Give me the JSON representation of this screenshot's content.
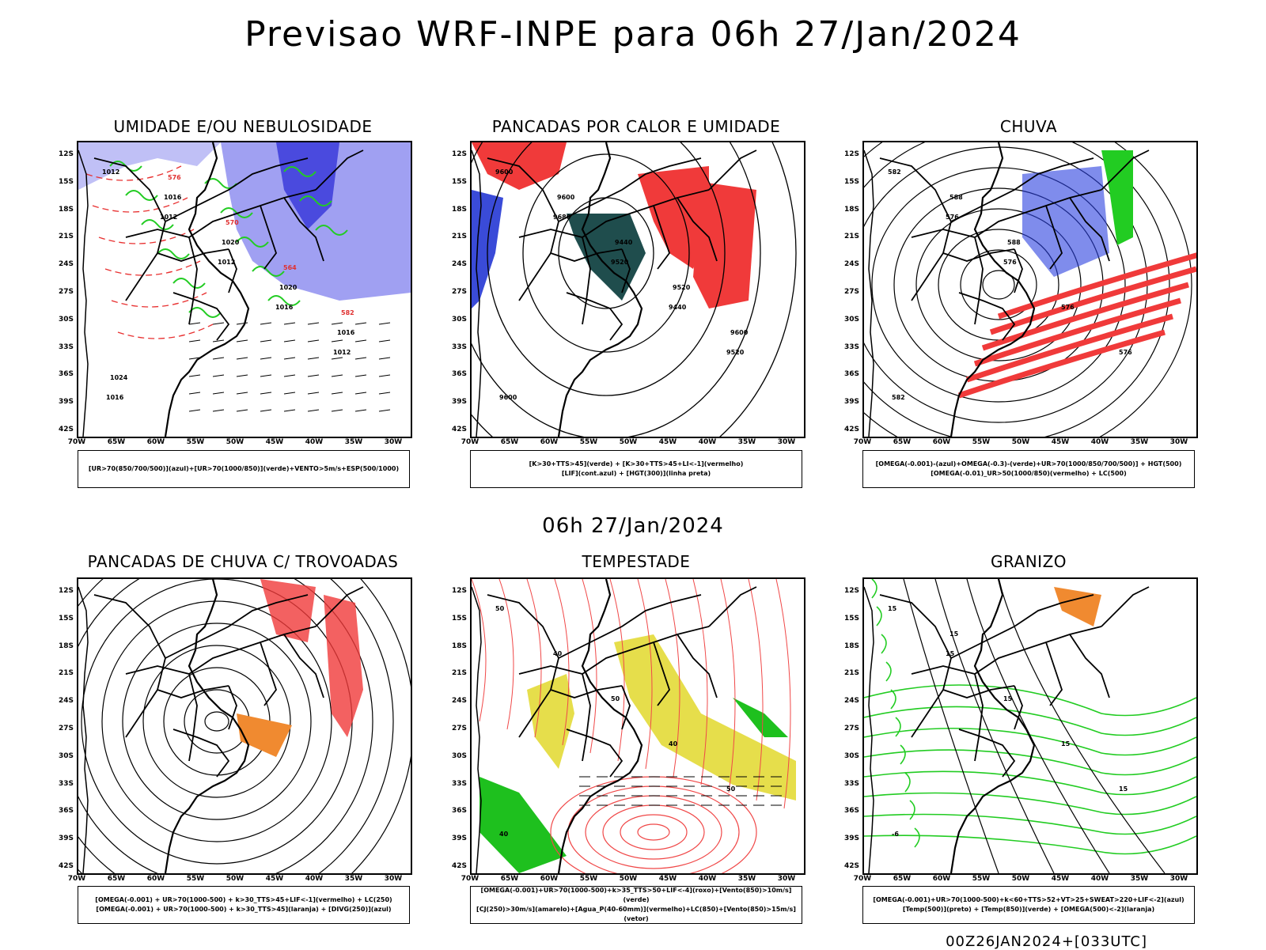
{
  "header": {
    "title": "Previsao WRF-INPE  para 06h 27/Jan/2024"
  },
  "mid": {
    "title": "06h 27/Jan/2024"
  },
  "footer": {
    "stamp": "00Z26JAN2024+[033UTC]"
  },
  "axes": {
    "lat_labels": [
      "12S",
      "15S",
      "18S",
      "21S",
      "24S",
      "27S",
      "30S",
      "33S",
      "36S",
      "39S",
      "42S"
    ],
    "lon_labels": [
      "70W",
      "65W",
      "60W",
      "55W",
      "50W",
      "45W",
      "40W",
      "35W",
      "30W"
    ]
  },
  "panels": [
    {
      "id": "umidade",
      "title": "UMIDADE E/OU NEBULOSIDADE",
      "legend": [
        "[UR>70(850/700/500)](azul)+[UR>70(1000/850)](verde)+VENTO>5m/s+ESP(500/1000)"
      ],
      "contour_labels": [
        "1012",
        "1012",
        "1012",
        "1016",
        "1012",
        "1016",
        "1016",
        "1020",
        "1020",
        "1016",
        "1024",
        "576",
        "570",
        "564",
        "582"
      ]
    },
    {
      "id": "pancadas-calor",
      "title": "PANCADAS POR CALOR E UMIDADE",
      "legend": [
        "[K>30+TTS>45](verde) + [K>30+TTS>45+LI<-1](vermelho)",
        "[LIF](cont.azul) + [HGT(300)](linha preta)"
      ],
      "contour_labels": [
        "9600",
        "9680",
        "9520",
        "9440",
        "9520",
        "9600",
        "9600",
        "9440",
        "9520",
        "9600"
      ]
    },
    {
      "id": "chuva",
      "title": "CHUVA",
      "legend": [
        "[OMEGA(-0.001)-(azul)+OMEGA(-0.3)-(verde)+UR>70(1000/850/700/500)] + HGT(500)",
        "[OMEGA(-0.01)_UR>50(1000/850)(vermelho) + LC(500)"
      ],
      "contour_labels": [
        "582",
        "576",
        "576",
        "576",
        "576",
        "582",
        "588",
        "588"
      ]
    },
    {
      "id": "trovoadas",
      "title": "PANCADAS DE CHUVA C/ TROVOADAS",
      "legend": [
        "[OMEGA(-0.001) + UR>70(1000-500) + k>30_TTS>45+LIF<-1](vermelho) + LC(250)",
        "[OMEGA(-0.001) + UR>70(1000-500) + k>30_TTS>45](laranja) + [DIVG(250)](azul)"
      ],
      "contour_labels": []
    },
    {
      "id": "tempestade",
      "title": "TEMPESTADE",
      "legend": [
        "[OMEGA(-0.001)+UR>70(1000-500)+k>35_TTS>50+LIF<-4](roxo)+[Vento(850)>10m/s](verde)",
        "[CJ(250)>30m/s](amarelo)+[Agua_P(40-60mm)](vermelho)+LC(850)+[Vento(850)>15m/s](vetor)"
      ],
      "contour_labels": [
        "50",
        "40",
        "50",
        "40",
        "50",
        "40"
      ]
    },
    {
      "id": "granizo",
      "title": "GRANIZO",
      "legend": [
        "[OMEGA(-0.001)+UR>70(1000-500)+k<60+TTS>52+VT>25+SWEAT>220+LIF<-2](azul)",
        "[Temp(500)](preto) + [Temp(850)](verde) + [OMEGA(500)<-2](laranja)"
      ],
      "contour_labels": [
        "15",
        "15",
        "15",
        "15",
        "15",
        "-6",
        "15"
      ]
    }
  ]
}
